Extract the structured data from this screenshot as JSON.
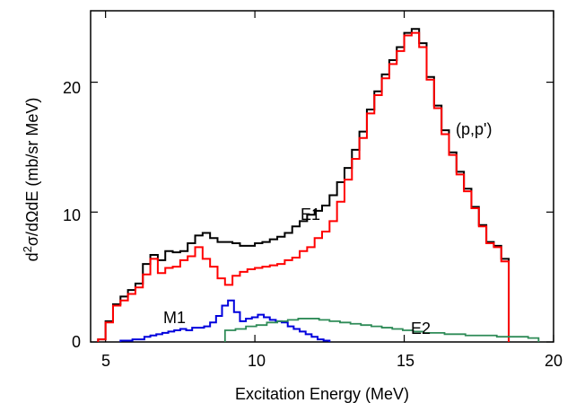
{
  "chart_data": {
    "type": "line",
    "title": "",
    "xlabel": "Excitation Energy (MeV)",
    "ylabel_parts": {
      "pre": "d",
      "sup": "2",
      "post": "σ/dΩdE (mb/sr MeV)"
    },
    "xlim": [
      4.5,
      20
    ],
    "ylim": [
      0,
      25.5
    ],
    "xticks": [
      5,
      10,
      15,
      20
    ],
    "yticks": [
      0,
      10,
      20
    ],
    "grid": false,
    "bin_start": 4.75,
    "bin_width": 0.25,
    "series": [
      {
        "name": "(p,p')",
        "color": "#000000",
        "values": [
          0.2,
          1.6,
          2.9,
          3.5,
          4.0,
          4.5,
          6.0,
          6.7,
          6.3,
          7.0,
          6.9,
          7.0,
          7.6,
          8.2,
          8.4,
          8.0,
          7.7,
          7.7,
          7.6,
          7.4,
          7.4,
          7.6,
          7.7,
          7.9,
          8.1,
          8.4,
          8.9,
          9.3,
          9.8,
          10.1,
          10.5,
          11.3,
          12.3,
          13.4,
          14.8,
          16.2,
          17.9,
          19.3,
          20.6,
          21.7,
          22.7,
          23.8,
          24.1,
          23.0,
          20.4,
          18.2,
          16.3,
          14.6,
          13.1,
          11.8,
          10.4,
          9.0,
          7.7,
          7.4,
          6.4
        ],
        "end_x": 19.5
      },
      {
        "name": "E1",
        "color": "#ff0000",
        "values": [
          0.2,
          1.5,
          2.8,
          3.2,
          3.7,
          4.2,
          5.2,
          6.4,
          5.3,
          5.7,
          5.8,
          6.3,
          6.6,
          7.3,
          6.4,
          5.8,
          4.9,
          4.4,
          5.1,
          5.4,
          5.6,
          5.7,
          5.8,
          5.9,
          6.0,
          6.3,
          6.5,
          7.0,
          7.3,
          8.0,
          8.5,
          9.3,
          10.8,
          12.5,
          14.1,
          15.7,
          17.6,
          19.0,
          20.3,
          21.4,
          22.4,
          23.6,
          23.8,
          22.7,
          20.2,
          18.0,
          16.0,
          14.4,
          12.9,
          11.6,
          10.3,
          8.9,
          7.6,
          7.3,
          6.2
        ],
        "end_x": 19.5
      },
      {
        "name": "M1",
        "color": "#0000dd",
        "values": [
          0.1,
          0.1,
          0.2,
          0.2,
          0.4,
          0.5,
          0.6,
          0.7,
          0.8,
          0.9,
          1.0,
          0.9,
          1.1,
          1.1,
          1.2,
          1.5,
          2.0,
          2.8,
          3.2,
          2.3,
          1.6,
          1.8,
          1.9,
          2.1,
          1.9,
          1.7,
          1.6,
          1.5,
          1.2,
          1.0,
          0.8,
          0.6,
          0.4,
          0.2,
          0.1
        ],
        "start_x": 5.5,
        "bin_width": 0.2,
        "end_x": 12.5
      },
      {
        "name": "E2",
        "color": "#2e8b57",
        "values": [
          0.9,
          1.0,
          1.2,
          1.3,
          1.5,
          1.6,
          1.7,
          1.8,
          1.8,
          1.7,
          1.6,
          1.5,
          1.4,
          1.3,
          1.2,
          1.1,
          1.0,
          0.9,
          0.8,
          0.7,
          0.7,
          0.6,
          0.6,
          0.5,
          0.5,
          0.5,
          0.4,
          0.4,
          0.4,
          0.3,
          0.3
        ],
        "start_x": 9.0,
        "bin_width": 0.35,
        "end_x": 19.5
      }
    ],
    "annotations": {
      "pp": "(p,p')",
      "e1": "E1",
      "m1": "M1",
      "e2": "E2"
    }
  }
}
